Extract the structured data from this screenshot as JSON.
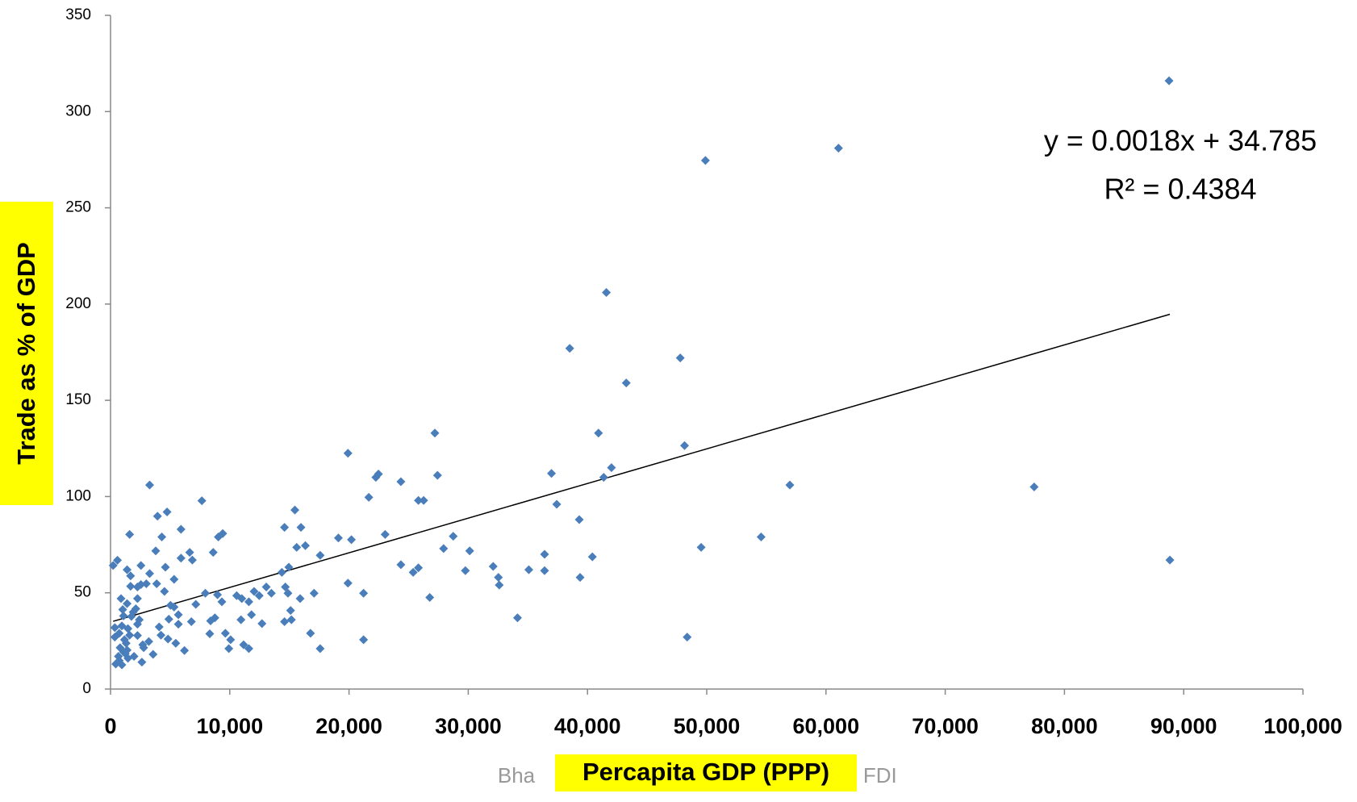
{
  "chart_data": {
    "type": "scatter",
    "xlabel": "Percapita GDP (PPP)",
    "ylabel": "Trade as % of GDP",
    "footer_parts": [
      "Bha",
      "d FDI"
    ],
    "color": "#4a7ebb",
    "grid": false,
    "xlim": [
      0,
      100000
    ],
    "ylim": [
      0,
      350
    ],
    "xticks": [
      0,
      {
        "value": 10000,
        "label": "10,000"
      },
      {
        "value": 20000,
        "label": "20,000"
      },
      {
        "value": 30000,
        "label": "30,000"
      },
      {
        "value": 40000,
        "label": "40,000"
      },
      {
        "value": 50000,
        "label": "50,000"
      },
      {
        "value": 60000,
        "label": "60,000"
      },
      {
        "value": 70000,
        "label": "70,000"
      },
      {
        "value": 80000,
        "label": "80,000"
      },
      {
        "value": 90000,
        "label": "90,000"
      },
      {
        "value": 100000,
        "label": "100,000"
      }
    ],
    "yticks": [
      0,
      50,
      100,
      150,
      200,
      250,
      300,
      350
    ],
    "trendline": {
      "slope": 0.0018,
      "intercept": 34.785,
      "label": "y = 0.0018x + 34.785",
      "r2_label": "R² = 0.4384"
    },
    "x": [
      88770,
      61050,
      49890,
      41580,
      38510,
      47780,
      43250,
      77460,
      88840,
      56970,
      54560,
      49530,
      48360,
      48140,
      42010,
      41360,
      40920,
      40410,
      39310,
      39380,
      37420,
      36980,
      36400,
      36400,
      35080,
      34130,
      32530,
      32600,
      32090,
      30120,
      29760,
      28740,
      27930,
      27200,
      27420,
      26260,
      25820,
      25820,
      25380,
      26770,
      24350,
      24350,
      23030,
      22470,
      22250,
      21660,
      21220,
      21220,
      20200,
      19910,
      19910,
      19110,
      17580,
      17580,
      17070,
      16770,
      16340,
      15970,
      15900,
      15610,
      15460,
      15170,
      15100,
      14950,
      14880,
      14590,
      14660,
      14590,
      14370,
      13490,
      13060,
      12700,
      12470,
      12040,
      11820,
      11600,
      11600,
      11160,
      11010,
      10940,
      10580,
      10070,
      9920,
      9630,
      9410,
      9340,
      9040,
      8970,
      8750,
      8610,
      8390,
      8320,
      7950,
      7660,
      7150,
      6780,
      6860,
      6640,
      6200,
      5910,
      5910,
      5690,
      5690,
      5470,
      5330,
      5330,
      5030,
      4890,
      4820,
      4520,
      4600,
      4740,
      4300,
      4230,
      3940,
      4080,
      3790,
      3870,
      3570,
      3280,
      3280,
      3210,
      3000,
      2780,
      2550,
      2550,
      2630,
      2700,
      2410,
      2260,
      2260,
      2260,
      2260,
      2120,
      1970,
      1900,
      1750,
      1680,
      1600,
      1680,
      1600,
      1460,
      1460,
      1390,
      1390,
      1310,
      1240,
      1170,
      1090,
      1090,
      1020,
      950,
      950,
      880,
      800,
      730,
      660,
      580,
      440,
      360,
      220,
      360,
      730,
      1390
    ],
    "y": [
      316,
      281,
      274.6,
      206,
      177,
      172,
      159,
      105,
      67,
      106,
      79,
      73.6,
      27,
      126.5,
      115,
      110,
      133,
      68.7,
      88,
      58,
      96,
      112,
      70,
      61.5,
      62,
      37,
      58,
      54,
      63.7,
      71.8,
      61.5,
      79.4,
      73,
      133,
      111,
      98,
      98,
      63,
      60.6,
      47.6,
      107.7,
      64.6,
      80.3,
      111.7,
      110,
      99.6,
      49.8,
      25.6,
      77.6,
      122.5,
      55,
      78.5,
      21,
      69.5,
      49.8,
      29,
      74.5,
      84,
      47,
      73.6,
      93,
      36,
      40.8,
      63.3,
      49.8,
      84,
      53,
      35,
      60.6,
      49.8,
      53,
      34,
      48.5,
      50.7,
      38.6,
      45.3,
      21,
      23,
      47,
      36,
      48.5,
      25.6,
      21,
      29,
      80.8,
      45.3,
      79,
      49,
      37,
      71,
      35.4,
      28.7,
      49.8,
      97.8,
      44,
      35,
      67,
      71,
      20,
      83,
      68,
      38.6,
      33.7,
      23.8,
      57,
      42.6,
      43.5,
      36.3,
      26,
      50.7,
      63.3,
      92,
      79,
      28,
      89.8,
      32.3,
      71.8,
      54.7,
      18,
      106,
      60,
      24.7,
      54.7,
      21.5,
      54.3,
      64.2,
      14,
      23,
      36,
      53,
      47,
      27.8,
      33.7,
      41.7,
      17,
      40,
      37.7,
      53.4,
      80.3,
      58.8,
      28,
      31.4,
      16,
      62,
      44.4,
      23.8,
      18.4,
      25.6,
      19.3,
      38,
      41.3,
      12.6,
      32.8,
      47,
      21.5,
      29,
      17,
      66.9,
      13,
      27,
      64.2,
      31.9,
      14.8,
      20.2
    ]
  }
}
